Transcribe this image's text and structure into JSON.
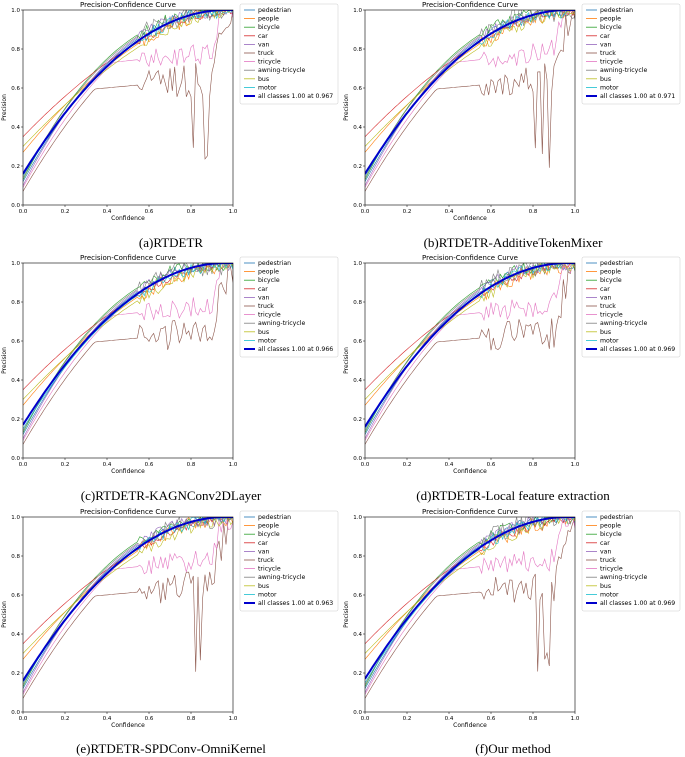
{
  "legend_classes": [
    "pedestrian",
    "people",
    "bicycle",
    "car",
    "van",
    "truck",
    "tricycle",
    "awning-tricycle",
    "bus",
    "motor"
  ],
  "class_colors": [
    "#1f77b4",
    "#ff7f0e",
    "#2ca02c",
    "#d62728",
    "#9467bd",
    "#8c564b",
    "#e377c2",
    "#7f7f7f",
    "#bcbd22",
    "#17becf"
  ],
  "all_color": "#0000cc",
  "chart_data": [
    {
      "type": "line",
      "title": "Precision-Confidence Curve",
      "xlabel": "Confidence",
      "ylabel": "Precision",
      "xlim": [
        0,
        1
      ],
      "ylim": [
        0,
        1
      ],
      "xticks": [
        "0.0",
        "0.2",
        "0.4",
        "0.6",
        "0.8",
        "1.0"
      ],
      "yticks": [
        "0.0",
        "0.2",
        "0.4",
        "0.6",
        "0.8",
        "1.0"
      ],
      "caption": "(a)RTDETR",
      "all_label": "all classes 1.00 at 0.967",
      "all_start": 0.16
    },
    {
      "type": "line",
      "title": "Precision-Confidence Curve",
      "xlabel": "Confidence",
      "ylabel": "Precision",
      "xlim": [
        0,
        1
      ],
      "ylim": [
        0,
        1
      ],
      "xticks": [
        "0.0",
        "0.2",
        "0.4",
        "0.6",
        "0.8",
        "1.0"
      ],
      "yticks": [
        "0.0",
        "0.2",
        "0.4",
        "0.6",
        "0.8",
        "1.0"
      ],
      "caption": "(b)RTDETR-AdditiveTokenMixer",
      "all_label": "all classes 1.00 at 0.971",
      "all_start": 0.16
    },
    {
      "type": "line",
      "title": "Precision-Confidence Curve",
      "xlabel": "Confidence",
      "ylabel": "Precision",
      "xlim": [
        0,
        1
      ],
      "ylim": [
        0,
        1
      ],
      "xticks": [
        "0.0",
        "0.2",
        "0.4",
        "0.6",
        "0.8",
        "1.0"
      ],
      "yticks": [
        "0.0",
        "0.2",
        "0.4",
        "0.6",
        "0.8",
        "1.0"
      ],
      "caption": "(c)RTDETR-KAGNConv2DLayer",
      "all_label": "all classes 1.00 at 0.966",
      "all_start": 0.17
    },
    {
      "type": "line",
      "title": "Precision-Confidence Curve",
      "xlabel": "Confidence",
      "ylabel": "Precision",
      "xlim": [
        0,
        1
      ],
      "ylim": [
        0,
        1
      ],
      "xticks": [
        "0.0",
        "0.2",
        "0.4",
        "0.6",
        "0.8",
        "1.0"
      ],
      "yticks": [
        "0.0",
        "0.2",
        "0.4",
        "0.6",
        "0.8",
        "1.0"
      ],
      "caption": "(d)RTDETR-Local feature extraction",
      "all_label": "all classes 1.00 at 0.969",
      "all_start": 0.16
    },
    {
      "type": "line",
      "title": "Precision-Confidence Curve",
      "xlabel": "Confidence",
      "ylabel": "Precision",
      "xlim": [
        0,
        1
      ],
      "ylim": [
        0,
        1
      ],
      "xticks": [
        "0.0",
        "0.2",
        "0.4",
        "0.6",
        "0.8",
        "1.0"
      ],
      "yticks": [
        "0.0",
        "0.2",
        "0.4",
        "0.6",
        "0.8",
        "1.0"
      ],
      "caption": "(e)RTDETR-SPDConv-OmniKernel",
      "all_label": "all classes 1.00 at 0.963",
      "all_start": 0.16
    },
    {
      "type": "line",
      "title": "Precision-Confidence Curve",
      "xlabel": "Confidence",
      "ylabel": "Precision",
      "xlim": [
        0,
        1
      ],
      "ylim": [
        0,
        1
      ],
      "xticks": [
        "0.0",
        "0.2",
        "0.4",
        "0.6",
        "0.8",
        "1.0"
      ],
      "yticks": [
        "0.0",
        "0.2",
        "0.4",
        "0.6",
        "0.8",
        "1.0"
      ],
      "caption": "(f)Our method",
      "all_label": "all classes 1.00 at 0.969",
      "all_start": 0.17
    }
  ]
}
